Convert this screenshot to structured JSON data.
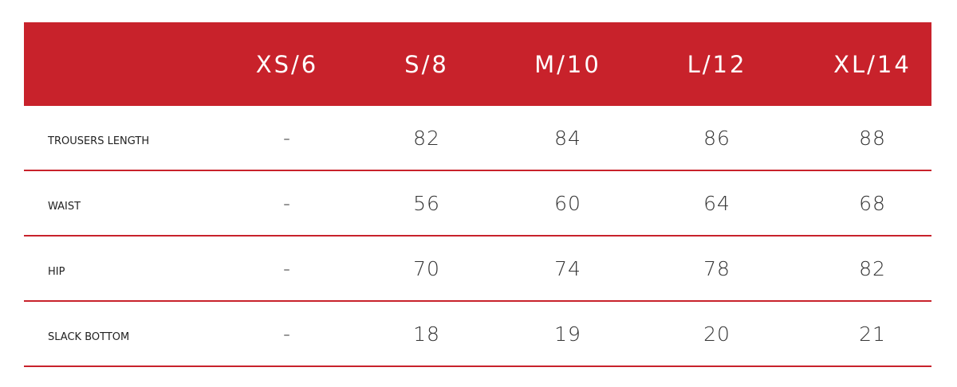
{
  "colors": {
    "header_bg": "#c8222b",
    "divider": "#c8222b"
  },
  "header": {
    "sizes": [
      "XS/6",
      "S/8",
      "M/10",
      "L/12",
      "XL/14"
    ]
  },
  "rows": [
    {
      "label": "TROUSERS LENGTH",
      "values": [
        "-",
        "82",
        "84",
        "86",
        "88"
      ]
    },
    {
      "label": "WAIST",
      "values": [
        "-",
        "56",
        "60",
        "64",
        "68"
      ]
    },
    {
      "label": "HIP",
      "values": [
        "-",
        "70",
        "74",
        "78",
        "82"
      ]
    },
    {
      "label": "SLACK BOTTOM",
      "values": [
        "-",
        "18",
        "19",
        "20",
        "21"
      ]
    }
  ]
}
